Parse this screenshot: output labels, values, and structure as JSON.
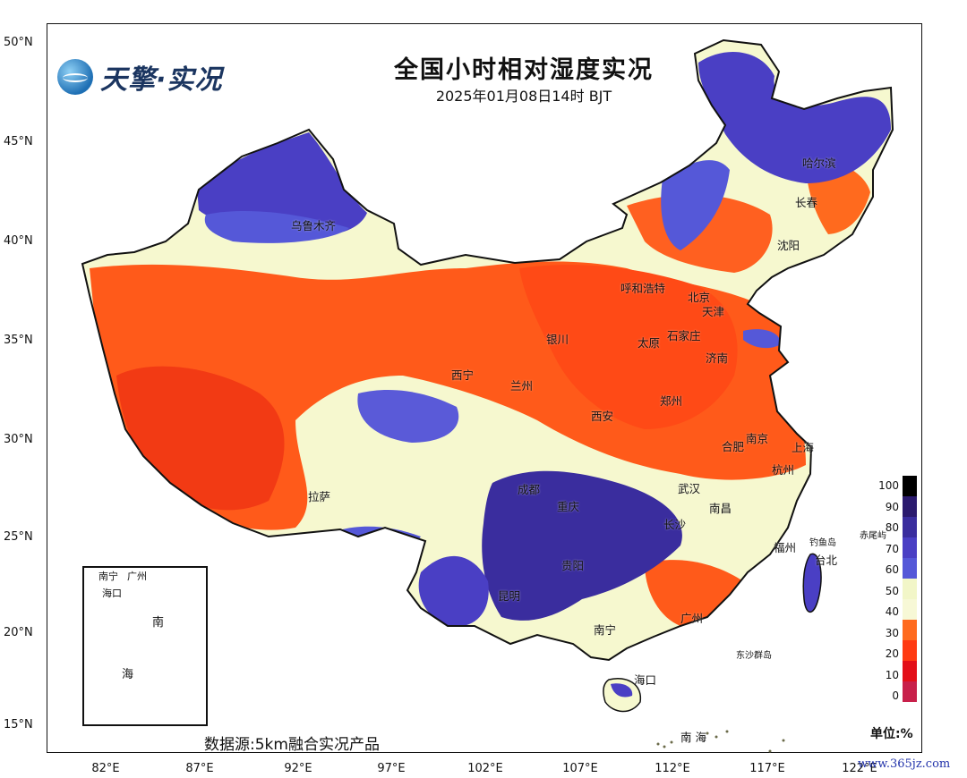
{
  "title": "全国小时相对湿度实况",
  "subtitle": "2025年01月08日14时  BJT",
  "logo": {
    "text": "天擎·实况",
    "icon": "globe-icon"
  },
  "source_note": "数据源:5km融合实况产品",
  "unit_label": "单位:%",
  "watermark": "www.365jz.com",
  "latitude_labels": [
    "50°N",
    "45°N",
    "40°N",
    "35°N",
    "30°N",
    "25°N",
    "20°N",
    "15°N"
  ],
  "longitude_labels": [
    "82°E",
    "87°E",
    "92°E",
    "97°E",
    "102°E",
    "107°E",
    "112°E",
    "117°E",
    "122°E"
  ],
  "cities": [
    "哈尔滨",
    "长春",
    "沈阳",
    "乌鲁木齐",
    "呼和浩特",
    "北京",
    "天津",
    "银川",
    "太原",
    "石家庄",
    "济南",
    "西宁",
    "兰州",
    "西安",
    "郑州",
    "南京",
    "上海",
    "合肥",
    "杭州",
    "拉萨",
    "成都",
    "重庆",
    "武汉",
    "南昌",
    "长沙",
    "福州",
    "贵阳",
    "昆明",
    "台北",
    "南宁",
    "广州",
    "海口"
  ],
  "place_labels": [
    "钓鱼岛",
    "赤尾屿",
    "东沙群岛",
    "南 海"
  ],
  "inset_labels": [
    "南宁",
    "广州",
    "海口",
    "南",
    "海"
  ],
  "legend": {
    "labels": [
      "100",
      "90",
      "80",
      "70",
      "60",
      "50",
      "40",
      "30",
      "20",
      "10",
      "0"
    ],
    "colors": [
      "#000000",
      "#2b1a6e",
      "#3a2d9e",
      "#4a3fc4",
      "#5558d8",
      "#f2f6c8",
      "#f7f8d6",
      "#ff6a1e",
      "#ff3a12",
      "#e30f18",
      "#c8204a"
    ]
  }
}
